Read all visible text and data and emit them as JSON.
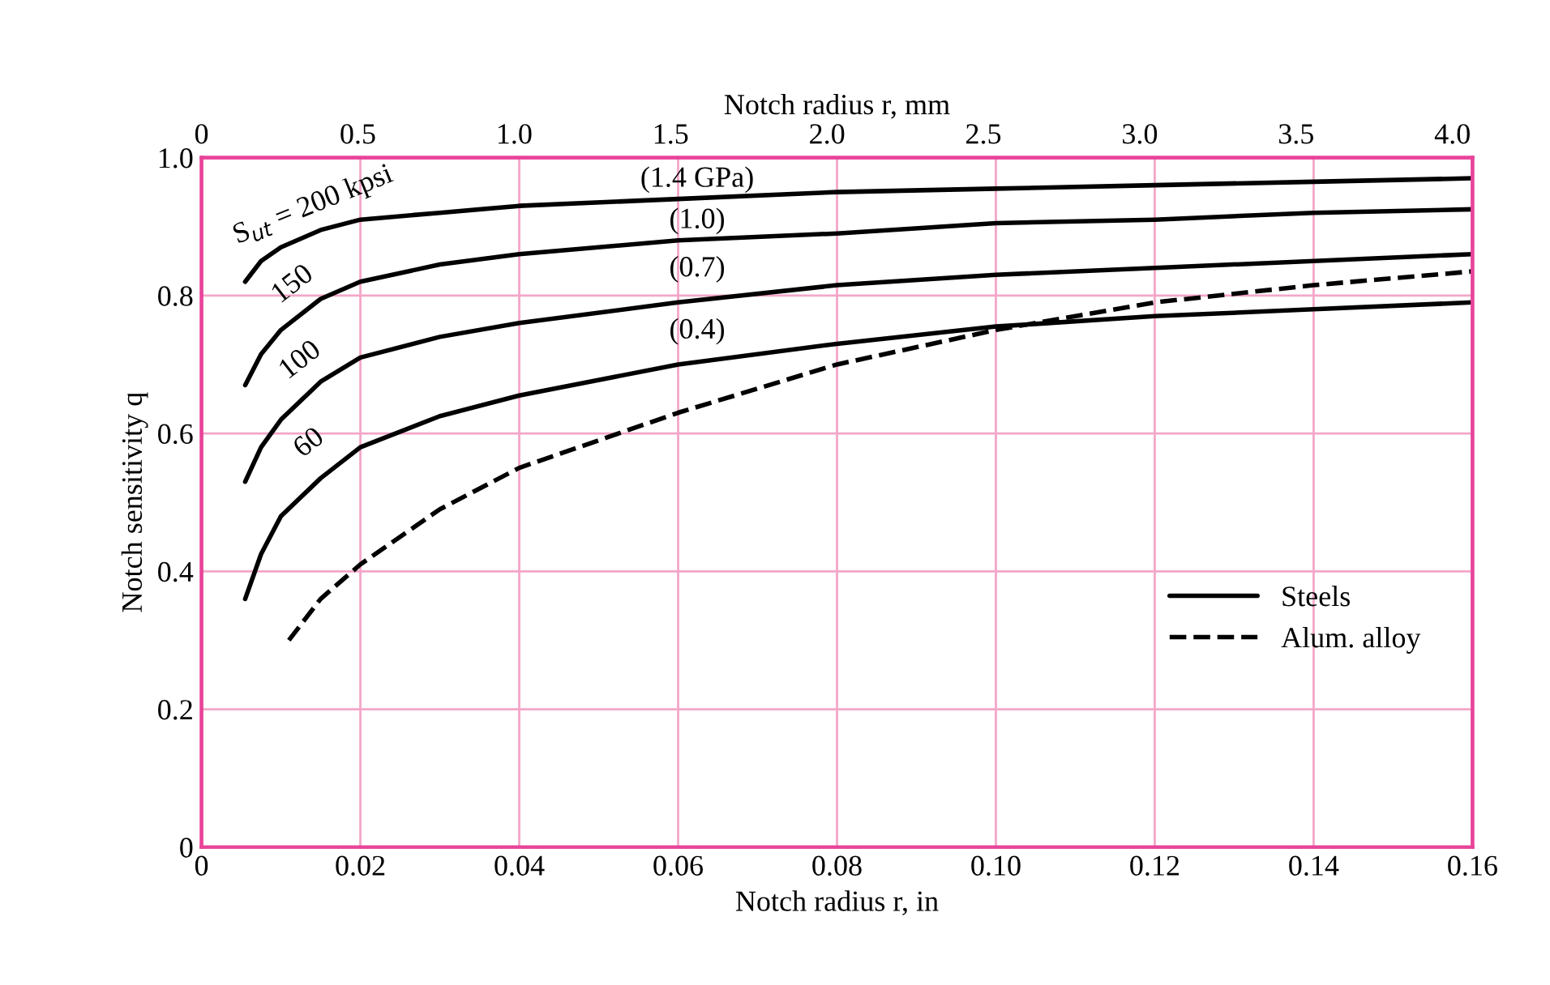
{
  "chart_data": {
    "type": "line",
    "xlabel": "Notch radius r, in",
    "ylabel": "Notch sensitivity q",
    "x2label": "Notch radius r, mm",
    "xlim": [
      0,
      0.16
    ],
    "xticks": [
      0,
      0.02,
      0.04,
      0.06,
      0.08,
      {
        "value": 0.1,
        "label": "0.10"
      },
      0.12,
      0.14,
      0.16
    ],
    "ylim": [
      0,
      1.0
    ],
    "yticks": [
      0,
      0.2,
      0.4,
      0.6,
      0.8,
      {
        "value": 1.0,
        "label": "1.0"
      }
    ],
    "x2lim": [
      0,
      4.064
    ],
    "x2ticks": [
      0,
      0.5,
      {
        "value": 1.0,
        "label": "1.0"
      },
      1.5,
      {
        "value": 2.0,
        "label": "2.0"
      },
      2.5,
      {
        "value": 3.0,
        "label": "3.0"
      },
      3.5,
      {
        "value": 4.0,
        "label": "4.0"
      }
    ],
    "grid": true,
    "legend": "right",
    "line_style": "solid",
    "series": [
      {
        "name": "Steels",
        "color": "#000000",
        "x": [
          0.0055,
          0.0075,
          0.01,
          0.015,
          0.02,
          0.03,
          0.04,
          0.06,
          0.08,
          0.1,
          0.12,
          0.14,
          0.16
        ],
        "values": [
          0.82,
          0.85,
          0.87,
          0.895,
          0.91,
          0.92,
          0.93,
          0.94,
          0.95,
          0.955,
          0.96,
          0.965,
          0.97
        ]
      },
      {
        "color": "#000000",
        "x": [
          0.0055,
          0.0075,
          0.01,
          0.015,
          0.02,
          0.03,
          0.04,
          0.06,
          0.08,
          0.1,
          0.12,
          0.14,
          0.16
        ],
        "values": [
          0.67,
          0.715,
          0.75,
          0.795,
          0.82,
          0.845,
          0.86,
          0.88,
          0.89,
          0.905,
          0.91,
          0.92,
          0.925
        ]
      },
      {
        "color": "#000000",
        "x": [
          0.0055,
          0.0075,
          0.01,
          0.015,
          0.02,
          0.03,
          0.04,
          0.06,
          0.08,
          0.1,
          0.12,
          0.14,
          0.16
        ],
        "values": [
          0.53,
          0.58,
          0.62,
          0.675,
          0.71,
          0.74,
          0.76,
          0.79,
          0.815,
          0.83,
          0.84,
          0.85,
          0.86
        ]
      },
      {
        "color": "#000000",
        "x": [
          0.0055,
          0.0075,
          0.01,
          0.015,
          0.02,
          0.03,
          0.04,
          0.06,
          0.08,
          0.1,
          0.12,
          0.14,
          0.16
        ],
        "values": [
          0.36,
          0.425,
          0.48,
          0.535,
          0.58,
          0.625,
          0.655,
          0.7,
          0.73,
          0.755,
          0.77,
          0.78,
          0.79
        ]
      },
      {
        "name": "Alum. alloy",
        "color": "#000000",
        "line_style": "dashed",
        "x": [
          0.011,
          0.015,
          0.02,
          0.03,
          0.04,
          0.06,
          0.08,
          0.1,
          0.12,
          0.14,
          0.16
        ],
        "values": [
          0.3,
          0.36,
          0.41,
          0.49,
          0.55,
          0.63,
          0.7,
          0.75,
          0.79,
          0.815,
          0.835
        ]
      }
    ],
    "annotations": [
      "S$_{ut}$ = 200 kpsi",
      "150",
      "100",
      "60",
      "(1.4 GPa)",
      "(1.0)",
      "(0.7)",
      "(0.4)"
    ]
  }
}
